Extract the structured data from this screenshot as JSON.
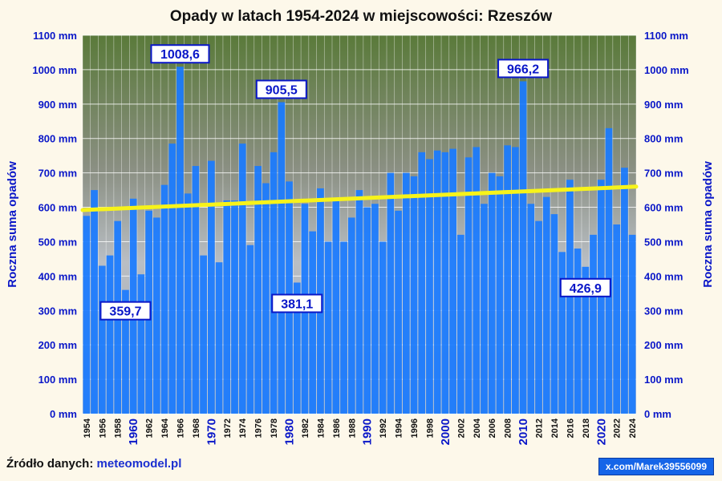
{
  "title": "Opady w latach 1954-2024 w miejscowości: Rzeszów",
  "source_label": "Źródło danych:",
  "source_link": "meteomodel.pl",
  "badge": "x.com/Marek39556099",
  "colors": {
    "bar": "#1a7bff",
    "trend": "#f7f31a",
    "axis_text": "#0a17c8",
    "label_border": "#0a17c8",
    "grid": "#ffffff"
  },
  "chart_data": {
    "type": "bar",
    "title": "Opady w latach 1954-2024 w miejscowości: Rzeszów",
    "ylabel": "Roczna suma opadów",
    "ylim": [
      0,
      1100
    ],
    "yticks": [
      {
        "v": 0,
        "label": "0 mm"
      },
      {
        "v": 100,
        "label": "100 mm"
      },
      {
        "v": 200,
        "label": "200 mm"
      },
      {
        "v": 300,
        "label": "300 mm"
      },
      {
        "v": 400,
        "label": "400 mm"
      },
      {
        "v": 500,
        "label": "500 mm"
      },
      {
        "v": 600,
        "label": "600 mm"
      },
      {
        "v": 700,
        "label": "700 mm"
      },
      {
        "v": 800,
        "label": "800 mm"
      },
      {
        "v": 900,
        "label": "900 mm"
      },
      {
        "v": 1000,
        "label": "1000 mm"
      },
      {
        "v": 1100,
        "label": "1100 mm"
      }
    ],
    "years": [
      1954,
      1955,
      1956,
      1957,
      1958,
      1959,
      1960,
      1961,
      1962,
      1963,
      1964,
      1965,
      1966,
      1967,
      1968,
      1969,
      1970,
      1971,
      1972,
      1973,
      1974,
      1975,
      1976,
      1977,
      1978,
      1979,
      1980,
      1981,
      1982,
      1983,
      1984,
      1985,
      1986,
      1987,
      1988,
      1989,
      1990,
      1991,
      1992,
      1993,
      1994,
      1995,
      1996,
      1997,
      1998,
      1999,
      2000,
      2001,
      2002,
      2003,
      2004,
      2005,
      2006,
      2007,
      2008,
      2009,
      2010,
      2011,
      2012,
      2013,
      2014,
      2015,
      2016,
      2017,
      2018,
      2019,
      2020,
      2021,
      2022,
      2023,
      2024
    ],
    "values": [
      575,
      650,
      430,
      460,
      560,
      359.7,
      625,
      405,
      590,
      570,
      665,
      785,
      1008.6,
      640,
      720,
      460,
      735,
      440,
      620,
      620,
      785,
      490,
      720,
      670,
      760,
      905.5,
      675,
      381.1,
      610,
      530,
      655,
      500,
      620,
      500,
      570,
      650,
      600,
      610,
      500,
      700,
      590,
      700,
      690,
      760,
      740,
      765,
      760,
      770,
      520,
      745,
      775,
      610,
      700,
      690,
      780,
      775,
      966.2,
      610,
      560,
      630,
      580,
      470,
      680,
      480,
      426.9,
      520,
      680,
      830,
      550,
      715,
      520
    ],
    "xtick_labels": [
      "1954",
      "1956",
      "1958",
      "1960",
      "1962",
      "1964",
      "1966",
      "1968",
      "1970",
      "1972",
      "1974",
      "1976",
      "1978",
      "1980",
      "1982",
      "1984",
      "1986",
      "1988",
      "1990",
      "1992",
      "1994",
      "1996",
      "1998",
      "2000",
      "2002",
      "2004",
      "2006",
      "2008",
      "2010",
      "2012",
      "2014",
      "2016",
      "2018",
      "2020",
      "2022",
      "2024"
    ],
    "major_years": [
      "1960",
      "1970",
      "1980",
      "1990",
      "2000",
      "2010",
      "2020"
    ],
    "annotations": [
      {
        "year": 1959,
        "text": "359,7",
        "pos": "below"
      },
      {
        "year": 1966,
        "text": "1008,6",
        "pos": "above"
      },
      {
        "year": 1979,
        "text": "905,5",
        "pos": "above"
      },
      {
        "year": 1981,
        "text": "381,1",
        "pos": "below"
      },
      {
        "year": 2010,
        "text": "966,2",
        "pos": "above"
      },
      {
        "year": 2018,
        "text": "426,9",
        "pos": "below"
      }
    ],
    "trend": {
      "start": 592,
      "end": 660
    },
    "grid": true
  }
}
